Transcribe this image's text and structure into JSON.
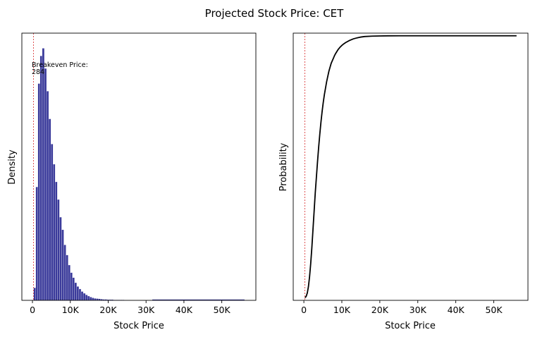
{
  "figure": {
    "title": "Projected Stock Price: CET"
  },
  "chart_data": [
    {
      "type": "bar",
      "subtype": "histogram",
      "xlabel": "Stock Price",
      "ylabel": "Density",
      "xlim": [
        -2800,
        59000
      ],
      "ylim": [
        0,
        1.06
      ],
      "xticks": [
        0,
        10000,
        20000,
        30000,
        40000,
        50000
      ],
      "xtick_labels": [
        "0",
        "10K",
        "20K",
        "30K",
        "40K",
        "50K"
      ],
      "yticks_visible": false,
      "bar_color": "#1f1f8c",
      "bin_width": 570,
      "bin_start": 300,
      "values": [
        0.05,
        0.45,
        0.86,
        0.97,
        1.0,
        0.92,
        0.83,
        0.72,
        0.62,
        0.54,
        0.47,
        0.4,
        0.33,
        0.28,
        0.22,
        0.18,
        0.14,
        0.11,
        0.09,
        0.07,
        0.055,
        0.045,
        0.035,
        0.028,
        0.022,
        0.017,
        0.013,
        0.01,
        0.008,
        0.007,
        0.006,
        0.005,
        0.004,
        0.004,
        0.003,
        0.003,
        0.003,
        0.002,
        0.002,
        0.002,
        0.002,
        0.002,
        0.001,
        0.001,
        0.001,
        0.001,
        0.001,
        0.001,
        0.001,
        0.001,
        0.001,
        0.001,
        0.001,
        0.001,
        0.001
      ],
      "tail_max": 56000,
      "breakeven": {
        "value": 284,
        "label_line1": "Breakeven Price:",
        "label_line2": "284",
        "color": "#d62728"
      }
    },
    {
      "type": "line",
      "xlabel": "Stock Price",
      "ylabel": "Probability",
      "xlim": [
        -2800,
        59000
      ],
      "ylim": [
        -0.01,
        1.01
      ],
      "xticks": [
        0,
        10000,
        20000,
        30000,
        40000,
        50000
      ],
      "xtick_labels": [
        "0",
        "10K",
        "20K",
        "30K",
        "40K",
        "50K"
      ],
      "yticks_visible": false,
      "line_color": "#000000",
      "x": [
        300,
        600,
        900,
        1200,
        1500,
        1800,
        2100,
        2400,
        2700,
        3000,
        3300,
        3600,
        3900,
        4200,
        4500,
        4800,
        5100,
        5400,
        5700,
        6000,
        6300,
        6600,
        6900,
        7200,
        7500,
        7800,
        8100,
        8400,
        8700,
        9000,
        9500,
        10000,
        10500,
        11000,
        12000,
        13000,
        14000,
        15000,
        16000,
        18000,
        20000,
        22000,
        25000,
        30000,
        40000,
        50000,
        56000
      ],
      "y": [
        0.0,
        0.005,
        0.018,
        0.042,
        0.08,
        0.13,
        0.19,
        0.26,
        0.33,
        0.4,
        0.46,
        0.52,
        0.575,
        0.625,
        0.67,
        0.71,
        0.745,
        0.775,
        0.8,
        0.825,
        0.845,
        0.865,
        0.88,
        0.895,
        0.905,
        0.915,
        0.925,
        0.933,
        0.94,
        0.947,
        0.956,
        0.963,
        0.969,
        0.974,
        0.982,
        0.988,
        0.992,
        0.995,
        0.997,
        0.9985,
        0.9993,
        0.9997,
        0.9999,
        1.0,
        1.0,
        1.0,
        1.0
      ],
      "breakeven": {
        "value": 284,
        "color": "#d62728"
      }
    }
  ]
}
